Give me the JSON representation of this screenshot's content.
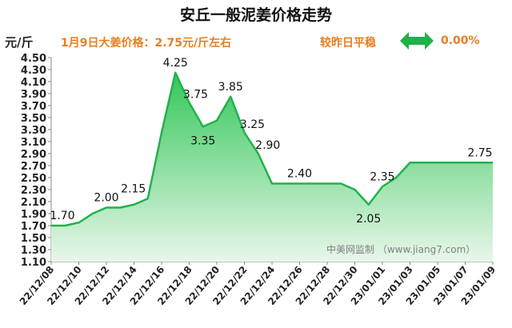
{
  "header": {
    "title": "安丘一般泥姜价格走势",
    "unit": "元/斤",
    "price_info": "1月9日大姜价格：2.75元/斤左右",
    "compare_label": "较昨日平稳",
    "change_value": "0.00%",
    "arrow_icon": "double-arrow-icon",
    "arrow_color": "#20b14a"
  },
  "watermark": "中美网监制 （www.jiang7.com）",
  "colors": {
    "line": "#22b14c",
    "fill_top": "#34c759",
    "fill_bottom": "#e8f7ea",
    "label": "#111111"
  },
  "chart_data": {
    "type": "area",
    "x": [
      "22/12/08",
      "22/12/09",
      "22/12/10",
      "22/12/11",
      "22/12/12",
      "22/12/13",
      "22/12/14",
      "22/12/15",
      "22/12/16",
      "22/12/17",
      "22/12/18",
      "22/12/19",
      "22/12/20",
      "22/12/21",
      "22/12/22",
      "22/12/23",
      "22/12/24",
      "22/12/25",
      "22/12/26",
      "22/12/27",
      "22/12/28",
      "22/12/29",
      "22/12/30",
      "22/12/31",
      "23/01/01",
      "23/01/02",
      "23/01/03",
      "23/01/04",
      "23/01/05",
      "23/01/06",
      "23/01/07",
      "23/01/08",
      "23/01/09"
    ],
    "values": [
      1.7,
      1.7,
      1.75,
      1.9,
      2.0,
      2.0,
      2.05,
      2.15,
      3.25,
      4.25,
      3.75,
      3.35,
      3.45,
      3.85,
      3.25,
      2.9,
      2.4,
      2.4,
      2.4,
      2.4,
      2.4,
      2.4,
      2.3,
      2.05,
      2.35,
      2.5,
      2.75,
      2.75,
      2.75,
      2.75,
      2.75,
      2.75,
      2.75
    ],
    "x_tick_labels": [
      "22/12/08",
      "22/12/10",
      "22/12/12",
      "22/12/14",
      "22/12/16",
      "22/12/18",
      "22/12/20",
      "22/12/22",
      "22/12/24",
      "22/12/26",
      "22/12/28",
      "22/12/30",
      "23/01/01",
      "23/01/03",
      "23/01/05",
      "23/01/07",
      "23/01/09"
    ],
    "data_labels": [
      {
        "index": 0,
        "text": "1.70"
      },
      {
        "index": 4,
        "text": "2.00"
      },
      {
        "index": 7,
        "text": "2.15"
      },
      {
        "index": 9,
        "text": "4.25"
      },
      {
        "index": 10,
        "text": "3.75"
      },
      {
        "index": 11,
        "text": "3.35"
      },
      {
        "index": 13,
        "text": "3.85"
      },
      {
        "index": 14,
        "text": "3.25"
      },
      {
        "index": 15,
        "text": "2.90"
      },
      {
        "index": 18,
        "text": "2.40"
      },
      {
        "index": 23,
        "text": "2.05"
      },
      {
        "index": 24,
        "text": "2.35"
      },
      {
        "index": 32,
        "text": "2.75"
      }
    ],
    "ylim": [
      1.1,
      4.5
    ],
    "y_ticks": [
      "1.10",
      "1.30",
      "1.50",
      "1.70",
      "1.90",
      "2.10",
      "2.30",
      "2.50",
      "2.70",
      "2.90",
      "3.10",
      "3.30",
      "3.50",
      "3.70",
      "3.90",
      "4.10",
      "4.30",
      "4.50"
    ],
    "grid": false,
    "legend": "none"
  }
}
